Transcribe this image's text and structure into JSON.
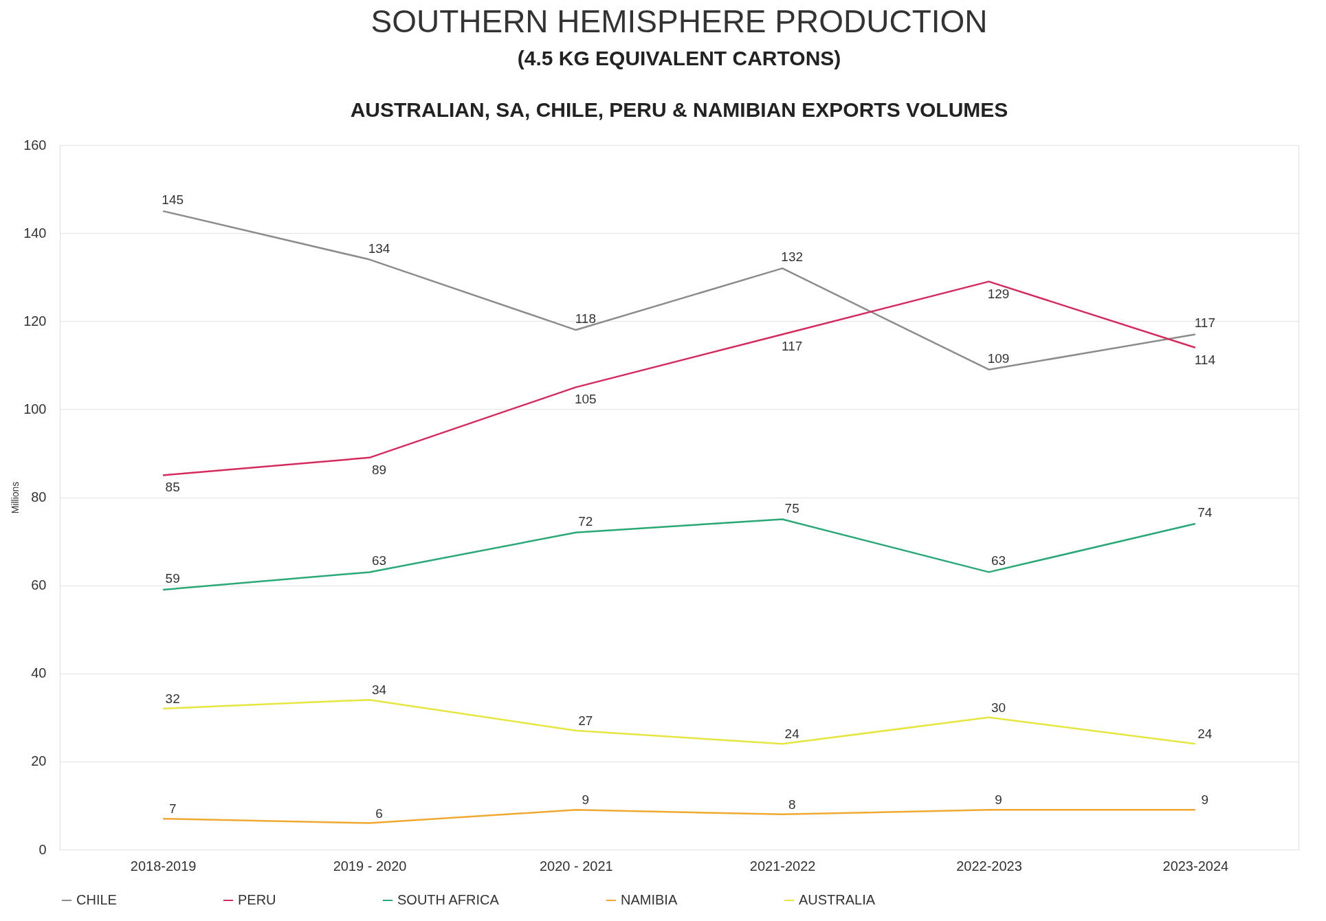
{
  "chart_data": {
    "type": "line",
    "title": "SOUTHERN HEMISPHERE PRODUCTION",
    "subtitle": "(4.5 KG EQUIVALENT CARTONS)",
    "annotations": [
      "AUSTRALIAN, SA, CHILE, PERU & NAMIBIAN EXPORTS VOLUMES"
    ],
    "ylabel": "Millions",
    "categories": [
      "2018-2019",
      "2019 - 2020",
      "2020 - 2021",
      "2021-2022",
      "2022-2023",
      "2023-2024"
    ],
    "series": [
      {
        "name": "CHILE",
        "color": "#8c8c8c",
        "values": [
          145,
          134,
          118,
          132,
          109,
          117
        ]
      },
      {
        "name": "PERU",
        "color": "#d42a5c",
        "values": [
          85,
          89,
          105,
          117,
          129,
          114
        ]
      },
      {
        "name": "SOUTH AFRICA",
        "color": "#2aa876",
        "values": [
          59,
          63,
          72,
          75,
          63,
          74
        ]
      },
      {
        "name": "NAMIBIA",
        "color": "#f0a830",
        "values": [
          7,
          6,
          9,
          8,
          9,
          9
        ]
      },
      {
        "name": "AUSTRALIA",
        "color": "#e6e640",
        "values": [
          32,
          34,
          27,
          24,
          30,
          24
        ]
      }
    ],
    "ylim": [
      0,
      160
    ],
    "yticks": [
      0,
      20,
      40,
      60,
      80,
      100,
      120,
      140,
      160
    ],
    "grid": "y",
    "legend": "bottom",
    "data_labels": true,
    "marker": "none",
    "line_style": "solid"
  }
}
